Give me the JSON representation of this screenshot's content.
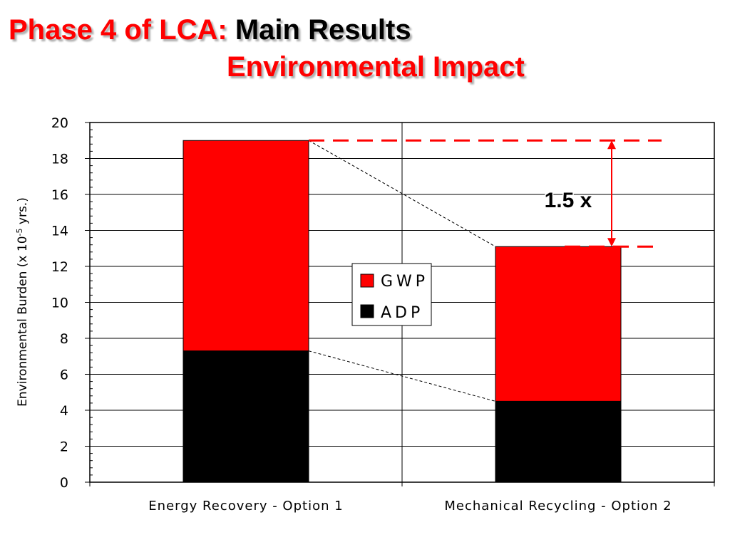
{
  "slide": {
    "title_part1": "Phase 4 of LCA:",
    "title_part2": "Main Results",
    "title_line2": "Environmental Impact"
  },
  "chart_data": {
    "type": "bar",
    "stacked": true,
    "title": "",
    "xlabel": "",
    "ylabel_main": "Environmental Burden  (x 10",
    "ylabel_sup": "-5",
    "ylabel_end": " yrs.)",
    "ylim": [
      0,
      20
    ],
    "ytick_step": 2,
    "yticks": [
      "0",
      "2",
      "4",
      "6",
      "8",
      "10",
      "12",
      "14",
      "16",
      "18",
      "20"
    ],
    "grid": true,
    "legend_position": "center",
    "categories": [
      "Energy Recovery - Option 1",
      "Mechanical Recycling - Option 2"
    ],
    "series": [
      {
        "name": "ADP",
        "values": [
          7.3,
          4.5
        ],
        "color": "#000000"
      },
      {
        "name": "GWP",
        "values": [
          11.7,
          8.6
        ],
        "color": "#ff0000"
      }
    ],
    "legend": [
      {
        "name": "GWP",
        "color": "#ff0000"
      },
      {
        "name": "ADP",
        "color": "#000000"
      }
    ],
    "annotation": {
      "text": "1.5 x",
      "from_value": 19,
      "to_value": 13.1,
      "color": "#ff0000"
    }
  }
}
